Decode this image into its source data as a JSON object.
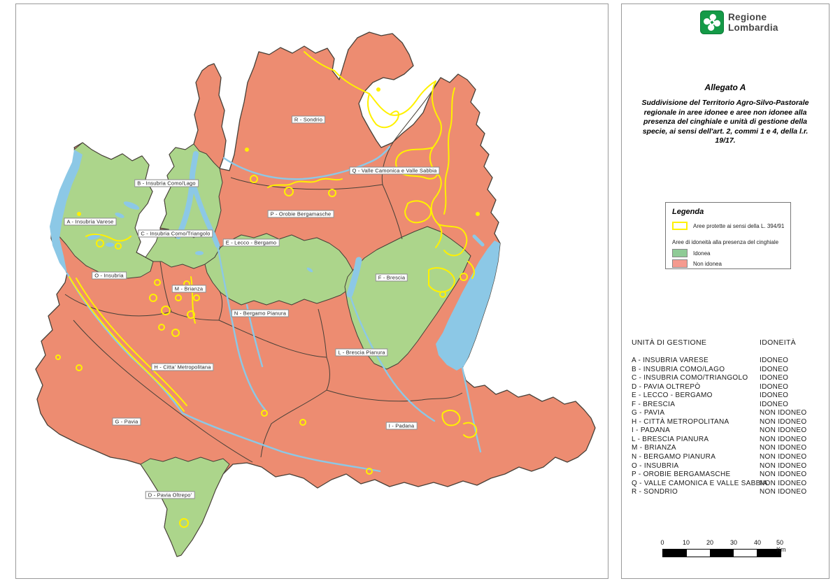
{
  "side_panel": {
    "logo": {
      "line1": "Regione",
      "line2": "Lombardia",
      "green": "#149A47"
    },
    "title": "Allegato A",
    "subtitle": "Suddivisione del Territorio Agro-Silvo-Pastorale regionale in aree idonee e aree non idonee alla presenza del cinghiale e unità di gestione della specie, ai sensi dell'art. 2, commi 1 e 4, della l.r. 19/17.",
    "legend": {
      "title": "Legenda",
      "protected_label": "Aree protette ai sensi della L. 394/91",
      "protected_color": "#FFF100",
      "suitability_label": "Aree di idoneità alla presenza del cinghiale",
      "items": [
        {
          "label": "Idonea",
          "color": "#8FCB96"
        },
        {
          "label": "Non idonea",
          "color": "#F59A8F"
        }
      ]
    },
    "table": {
      "col1": "UNITÀ DI GESTIONE",
      "col2": "IDONEITÀ",
      "rows": [
        {
          "name": "A - INSUBRIA VARESE",
          "status": "IDONEO"
        },
        {
          "name": "B - INSUBRIA COMO/LAGO",
          "status": "IDONEO"
        },
        {
          "name": "C - INSUBRIA COMO/TRIANGOLO",
          "status": "IDONEO"
        },
        {
          "name": "D - PAVIA OLTREPÒ",
          "status": "IDONEO"
        },
        {
          "name": "E - LECCO - BERGAMO",
          "status": "IDONEO"
        },
        {
          "name": "F - BRESCIA",
          "status": "IDONEO"
        },
        {
          "name": "G - PAVIA",
          "status": "NON IDONEO"
        },
        {
          "name": "H - CITTÀ METROPOLITANA",
          "status": "NON IDONEO"
        },
        {
          "name": "I - PADANA",
          "status": "NON IDONEO"
        },
        {
          "name": "L - BRESCIA PIANURA",
          "status": "NON IDONEO"
        },
        {
          "name": "M - BRIANZA",
          "status": "NON IDONEO"
        },
        {
          "name": "N - BERGAMO PIANURA",
          "status": "NON IDONEO"
        },
        {
          "name": "O - INSUBRIA",
          "status": "NON IDONEO"
        },
        {
          "name": "P - OROBIE BERGAMASCHE",
          "status": "NON IDONEO"
        },
        {
          "name": "Q - VALLE CAMONICA E VALLE SABBIA",
          "status": "NON IDONEO"
        },
        {
          "name": "R - SONDRIO",
          "status": "NON IDONEO"
        }
      ]
    },
    "scalebar": {
      "ticks": [
        "0",
        "10",
        "20",
        "30",
        "40"
      ],
      "end_label": "50 Km"
    }
  },
  "map": {
    "colors": {
      "idoneo": "#ACD58B",
      "non_idoneo": "#ED8C71",
      "lake": "#8CC8E6",
      "protected": "#FFF100",
      "boundary": "#474038"
    },
    "labels": [
      {
        "text": "R - Sondrio"
      },
      {
        "text": "Q - Valle Camonica e Valle Sabbia"
      },
      {
        "text": "B - Insubria Como/Lago"
      },
      {
        "text": "P - Orobie Bergamasche"
      },
      {
        "text": "A - Insubria Varese"
      },
      {
        "text": "C - Insubria Como/Triangolo"
      },
      {
        "text": "E - Lecco - Bergamo"
      },
      {
        "text": "O - Insubria"
      },
      {
        "text": "F - Brescia"
      },
      {
        "text": "M - Brianza"
      },
      {
        "text": "N - Bergamo Pianura"
      },
      {
        "text": "L - Brescia Pianura"
      },
      {
        "text": "H - Citta' Metropolitana"
      },
      {
        "text": "G - Pavia"
      },
      {
        "text": "I - Padana"
      },
      {
        "text": "D - Pavia Oltrepo'"
      }
    ]
  }
}
